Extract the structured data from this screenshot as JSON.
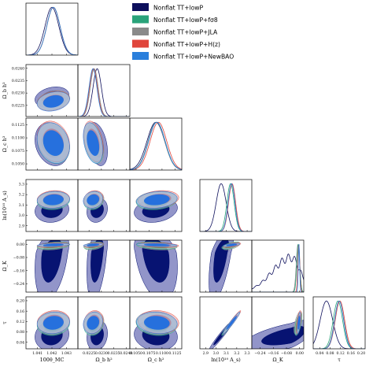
{
  "chart_data": {
    "type": "triangle-corner",
    "title": "",
    "parameters": [
      {
        "key": "theta",
        "label": "100θ_MC",
        "range": [
          1.0402,
          1.0438
        ],
        "ticks": [
          1.041,
          1.042,
          1.043
        ]
      },
      {
        "key": "ombh2",
        "label": "Ω_b h²",
        "range": [
          0.02205,
          0.02415
        ],
        "ticks": [
          0.0225,
          0.023,
          0.0235,
          0.024
        ]
      },
      {
        "key": "omch2",
        "label": "Ω_c h²",
        "range": [
          0.1038,
          0.1138
        ],
        "ticks": [
          0.105,
          0.1075,
          0.11,
          0.1125
        ]
      },
      {
        "key": "lnAs",
        "label": "ln(10¹⁰ A_s)",
        "range": [
          2.845,
          3.345
        ],
        "ticks": [
          2.9,
          3.0,
          3.1,
          3.2,
          3.3
        ]
      },
      {
        "key": "omk",
        "label": "Ω_K",
        "range": [
          -0.29,
          0.025
        ],
        "ticks": [
          -0.24,
          -0.16,
          -0.08,
          0.0
        ]
      },
      {
        "key": "tau",
        "label": "τ",
        "range": [
          0.015,
          0.215
        ],
        "ticks": [
          0.04,
          0.08,
          0.12,
          0.16,
          0.2
        ]
      }
    ],
    "tick_labels": {
      "theta": [
        "1.041",
        "1.042",
        "1.043"
      ],
      "ombh2": [
        "0.0225",
        "0.0230",
        "0.0235",
        "0.0240"
      ],
      "omch2": [
        "0.1050",
        "0.1075",
        "0.1100",
        "0.1125"
      ],
      "lnAs": [
        "2.9",
        "3.0",
        "3.1",
        "3.2",
        "3.3"
      ],
      "omk": [
        "−0.24",
        "−0.16",
        "−0.08",
        "0.00"
      ],
      "tau": [
        "0.04",
        "0.08",
        "0.12",
        "0.16",
        "0.20"
      ]
    },
    "legend_position": "top-right",
    "series": [
      {
        "name": "Nonflat TT+lowP",
        "color": "#0d0f5c",
        "contour_inner": "#000c6e",
        "contour_outer": "#7f83c0",
        "mean": [
          1.042,
          0.02283,
          0.1088,
          3.05,
          -0.052,
          0.066
        ],
        "sigma": [
          0.00048,
          0.00017,
          0.0017,
          0.048,
          0.056,
          0.024
        ],
        "omk_skewed": true
      },
      {
        "name": "Nonflat TT+lowP+fσ8",
        "color": "#2aa37a",
        "contour_inner": "#2aa37a",
        "contour_outer": "#8fd4b6",
        "mean": [
          1.0421,
          0.02268,
          0.109,
          3.14,
          -0.008,
          0.11
        ],
        "sigma": [
          0.00046,
          0.00016,
          0.0016,
          0.035,
          0.009,
          0.018
        ],
        "omk_skewed": false
      },
      {
        "name": "Nonflat TT+lowP+JLA",
        "color": "#8a8a8a",
        "contour_inner": "#8a8a8a",
        "contour_outer": "#c8c8c8",
        "mean": [
          1.0421,
          0.02271,
          0.1089,
          3.15,
          -0.01,
          0.115
        ],
        "sigma": [
          0.00046,
          0.00016,
          0.0016,
          0.034,
          0.01,
          0.018
        ],
        "omk_skewed": false
      },
      {
        "name": "Nonflat TT+lowP+H(z)",
        "color": "#e0463c",
        "contour_inner": "#e0463c",
        "contour_outer": "#f2a39b",
        "mean": [
          1.0421,
          0.02268,
          0.1093,
          3.155,
          -0.005,
          0.118
        ],
        "sigma": [
          0.00046,
          0.00016,
          0.0016,
          0.034,
          0.006,
          0.018
        ],
        "omk_skewed": false
      },
      {
        "name": "Nonflat TT+lowP+NewBAO",
        "color": "#2a7fdc",
        "contour_inner": "#1f6fe0",
        "contour_outer": "#8fbff0",
        "mean": [
          1.0421,
          0.02266,
          0.109,
          3.15,
          -0.004,
          0.115
        ],
        "sigma": [
          0.00046,
          0.00016,
          0.0016,
          0.033,
          0.004,
          0.017
        ],
        "omk_skewed": false
      }
    ]
  },
  "legend": {
    "items": [
      {
        "label": "Nonflat TT+lowP",
        "color": "#0d0f5c"
      },
      {
        "label": "Nonflat TT+lowP+fσ8",
        "color": "#2aa37a"
      },
      {
        "label": "Nonflat TT+lowP+JLA",
        "color": "#8a8a8a"
      },
      {
        "label": "Nonflat TT+lowP+H(z)",
        "color": "#e0463c"
      },
      {
        "label": "Nonflat TT+lowP+NewBAO",
        "color": "#2a7fdc"
      }
    ]
  }
}
